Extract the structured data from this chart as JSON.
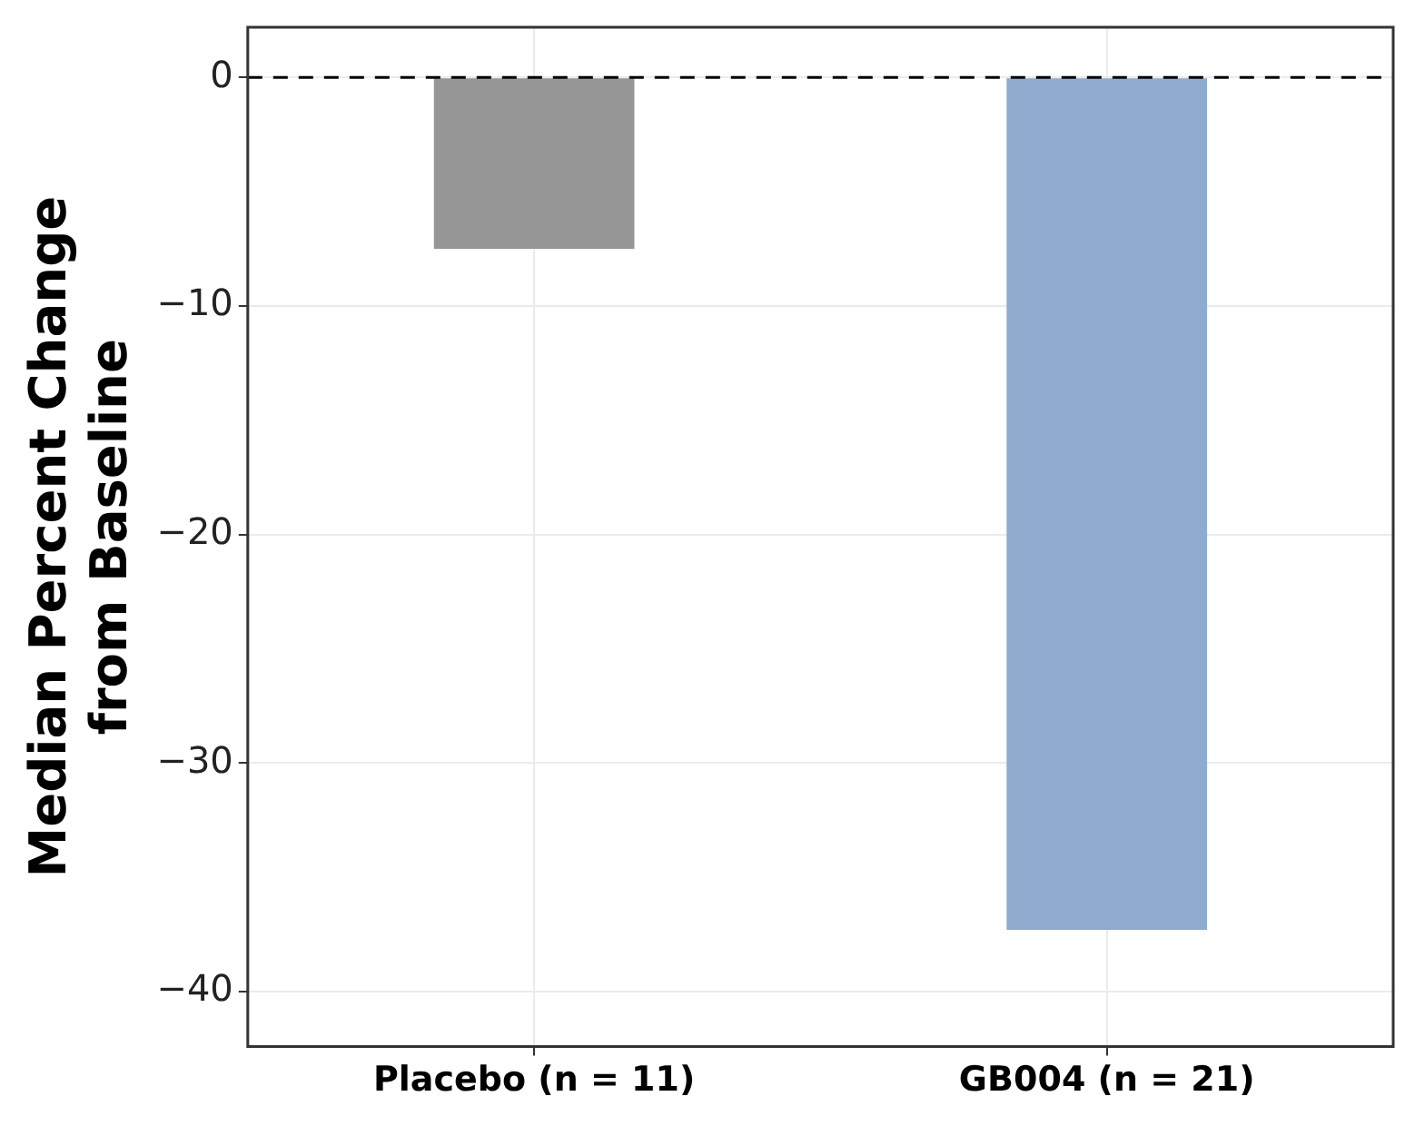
{
  "chart_data": {
    "type": "bar",
    "ylabel": "Median Percent Change\nfrom Baseline",
    "categories": [
      "Placebo (n = 11)",
      "GB004 (n = 21)"
    ],
    "values": [
      -7.5,
      -37.3
    ],
    "colors": [
      "#969696",
      "#8eaacf"
    ],
    "ylim": [
      -42.4,
      2.2
    ],
    "yticks": [
      0,
      -10,
      -20,
      -30,
      -40
    ],
    "grid": true,
    "ref_lines": [
      {
        "axis": "y",
        "value": 0,
        "line_style": "dashed",
        "color": "#000000"
      }
    ]
  }
}
